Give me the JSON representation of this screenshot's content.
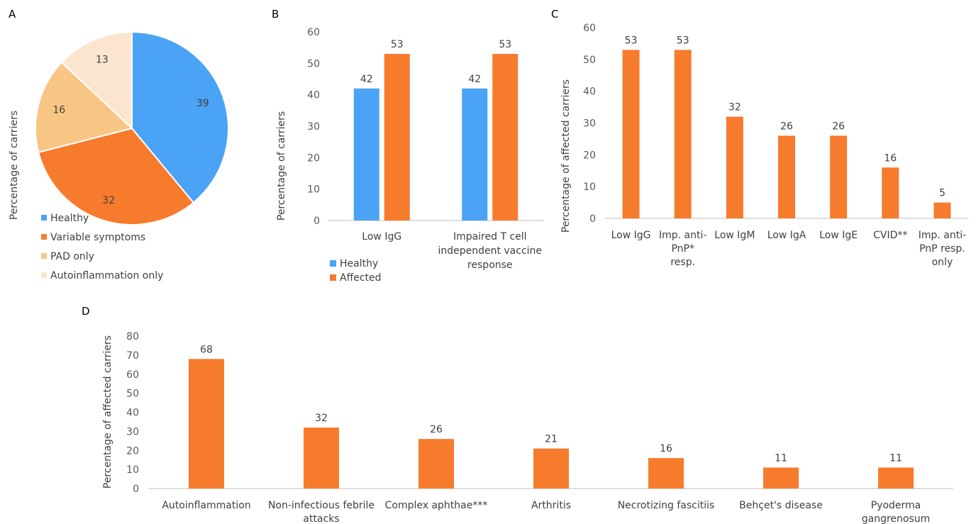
{
  "panel_letters": {
    "a": "A",
    "b": "B",
    "c": "C",
    "d": "D"
  },
  "colors": {
    "healthy": "#4BA3F5",
    "variable_symptoms": "#F77B2C",
    "pad_only": "#F8C684",
    "autoinflammation_only": "#FBE5CF",
    "affected": "#F77B2C"
  },
  "chart_data": [
    {
      "type": "pie",
      "panel": "A",
      "ylabel": "Percentage of carriers",
      "slices": [
        {
          "name": "Healthy",
          "value": 39
        },
        {
          "name": "Variable symptoms",
          "value": 32
        },
        {
          "name": "PAD only",
          "value": 16
        },
        {
          "name": "Autoinflammation only",
          "value": 13
        }
      ],
      "legend": "bottom"
    },
    {
      "type": "bar",
      "panel": "B",
      "ylabel": "Percentage of carriers",
      "ylim": [
        0,
        60
      ],
      "yticks": [
        "0",
        "10",
        "20",
        "30",
        "40",
        "50",
        "60"
      ],
      "categories": [
        "Low IgG",
        "Impaired T cell independent vaccine response"
      ],
      "category_lines": [
        [
          "Low IgG"
        ],
        [
          "Impaired T cell",
          "independent vaccine",
          "response"
        ]
      ],
      "series": [
        {
          "name": "Healthy",
          "values": [
            42,
            42
          ]
        },
        {
          "name": "Affected",
          "values": [
            53,
            53
          ]
        }
      ],
      "legend": "bottom-left",
      "grid": false
    },
    {
      "type": "bar",
      "panel": "C",
      "ylabel": "Percentage of affected carriers",
      "ylim": [
        0,
        60
      ],
      "yticks": [
        "0",
        "10",
        "20",
        "30",
        "40",
        "50",
        "60"
      ],
      "categories": [
        "Low IgG",
        "Imp. anti-PnP* resp.",
        "Low IgM",
        "Low IgA",
        "Low IgE",
        "CVID**",
        "Imp. anti-PnP resp. only"
      ],
      "category_lines": [
        [
          "Low IgG"
        ],
        [
          "Imp. anti-",
          "PnP*",
          "resp."
        ],
        [
          "Low IgM"
        ],
        [
          "Low IgA"
        ],
        [
          "Low IgE"
        ],
        [
          "CVID**"
        ],
        [
          "Imp. anti-",
          "PnP resp.",
          "only"
        ]
      ],
      "values": [
        53,
        53,
        32,
        26,
        26,
        16,
        5
      ],
      "grid": false
    },
    {
      "type": "bar",
      "panel": "D",
      "ylabel": "Percentage of affected carriers",
      "ylim": [
        0,
        80
      ],
      "yticks": [
        "0",
        "10",
        "20",
        "30",
        "40",
        "50",
        "60",
        "70",
        "80"
      ],
      "categories": [
        "Autoinflammation",
        "Non-infectious febrile attacks",
        "Complex aphthae***",
        "Arthritis",
        "Necrotizing fascitiis",
        "Behçet's disease",
        "Pyoderma gangrenosum"
      ],
      "category_lines": [
        [
          "Autoinflammation"
        ],
        [
          "Non-infectious febrile",
          "attacks"
        ],
        [
          "Complex aphthae***"
        ],
        [
          "Arthritis"
        ],
        [
          "Necrotizing fascitiis"
        ],
        [
          "Behçet's disease"
        ],
        [
          "Pyoderma",
          "gangrenosum"
        ]
      ],
      "values": [
        68,
        32,
        26,
        21,
        16,
        11,
        11
      ],
      "grid": false
    }
  ]
}
